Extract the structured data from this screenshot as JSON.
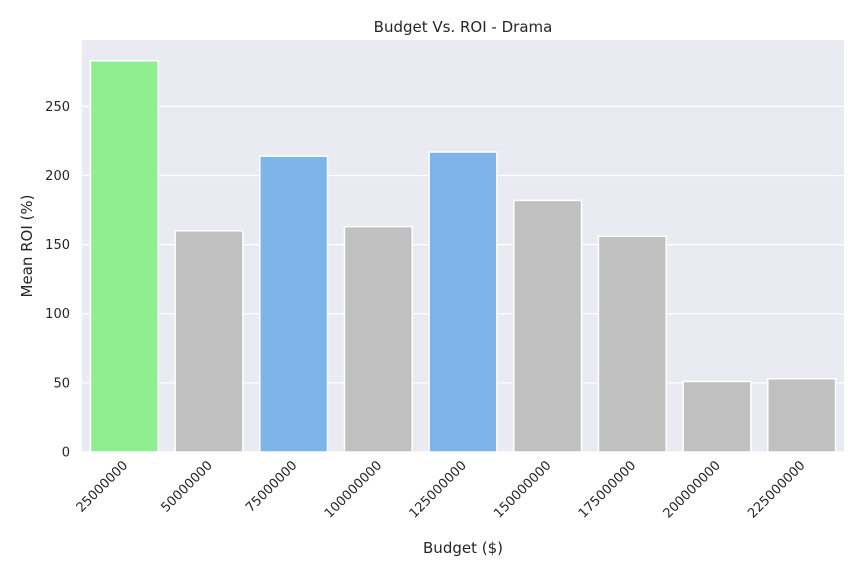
{
  "chart_data": {
    "type": "bar",
    "title": "Budget Vs. ROI - Drama",
    "xlabel": "Budget ($)",
    "ylabel": "Mean ROI (%)",
    "categories": [
      "25000000",
      "50000000",
      "75000000",
      "100000000",
      "125000000",
      "150000000",
      "175000000",
      "200000000",
      "225000000"
    ],
    "values": [
      283,
      160,
      214,
      163,
      217,
      182,
      156,
      51,
      53
    ],
    "bar_colors": [
      "#90ee90",
      "#c0c0c0",
      "#7eb4ea",
      "#c0c0c0",
      "#7eb4ea",
      "#c0c0c0",
      "#c0c0c0",
      "#c0c0c0",
      "#c0c0c0"
    ],
    "ylim": [
      0,
      298
    ],
    "yticks": [
      0,
      50,
      100,
      150,
      200,
      250
    ],
    "grid": true,
    "background_color": "#eaeaf2"
  }
}
